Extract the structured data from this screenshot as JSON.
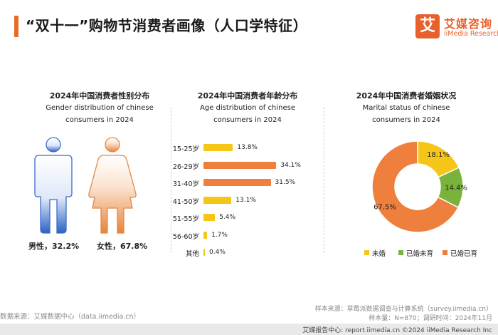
{
  "header": {
    "title": "“双十一”购物节消费者画像（人口学特征）",
    "logo_mark": "艾",
    "logo_cn": "艾媒咨询",
    "logo_en": "iiMedia Research"
  },
  "chart_data": [
    {
      "type": "pictogram",
      "title": "2024年中国消费者性别分布",
      "subtitle_line1": "Gender distribution of chinese",
      "subtitle_line2": "consumers in 2024",
      "categories": [
        "男性",
        "女性"
      ],
      "values": [
        32.2,
        67.8
      ],
      "labels": [
        "男性，32.2%",
        "女性，67.8%"
      ],
      "colors": [
        "#2c62c4",
        "#e8833a"
      ]
    },
    {
      "type": "bar",
      "orientation": "horizontal",
      "title": "2024年中国消费者年龄分布",
      "subtitle_line1": "Age distribution of chinese",
      "subtitle_line2": "consumers in 2024",
      "categories": [
        "15-25岁",
        "26-29岁",
        "31-40岁",
        "41-50岁",
        "51-55岁",
        "56-60岁",
        "其他"
      ],
      "values": [
        13.8,
        34.1,
        31.5,
        13.1,
        5.4,
        1.7,
        0.4
      ],
      "value_labels": [
        "13.8%",
        "34.1%",
        "31.5%",
        "13.1%",
        "5.4%",
        "1.7%",
        "0.4%"
      ],
      "highlight": [
        1,
        2
      ],
      "colors": {
        "default": "#f5c518",
        "highlight": "#ee7f3c"
      }
    },
    {
      "type": "pie",
      "donut": true,
      "title": "2024年中国消费者婚姻状况",
      "subtitle_line1": "Marital status of chinese",
      "subtitle_line2": "consumers in 2024",
      "categories": [
        "未婚",
        "已婚未育",
        "已婚已育"
      ],
      "values": [
        18.1,
        14.4,
        67.5
      ],
      "value_labels": [
        "18.1%",
        "14.4%",
        "67.5%"
      ],
      "colors": [
        "#f5c518",
        "#7ab33c",
        "#ee7f3c"
      ],
      "legend_position": "bottom"
    }
  ],
  "footer": {
    "source": "数据来源：艾媒数据中心（data.iimedia.cn）",
    "sample_line1": "样本来源：草莓派数据调查与计算系统（survey.iimedia.cn）",
    "sample_line2": "样本量：N=870；调研时间：2024年11月",
    "strip_text": "艾媒报告中心: report.iimedia.cn     ©2024  iiMedia Research  Inc"
  }
}
